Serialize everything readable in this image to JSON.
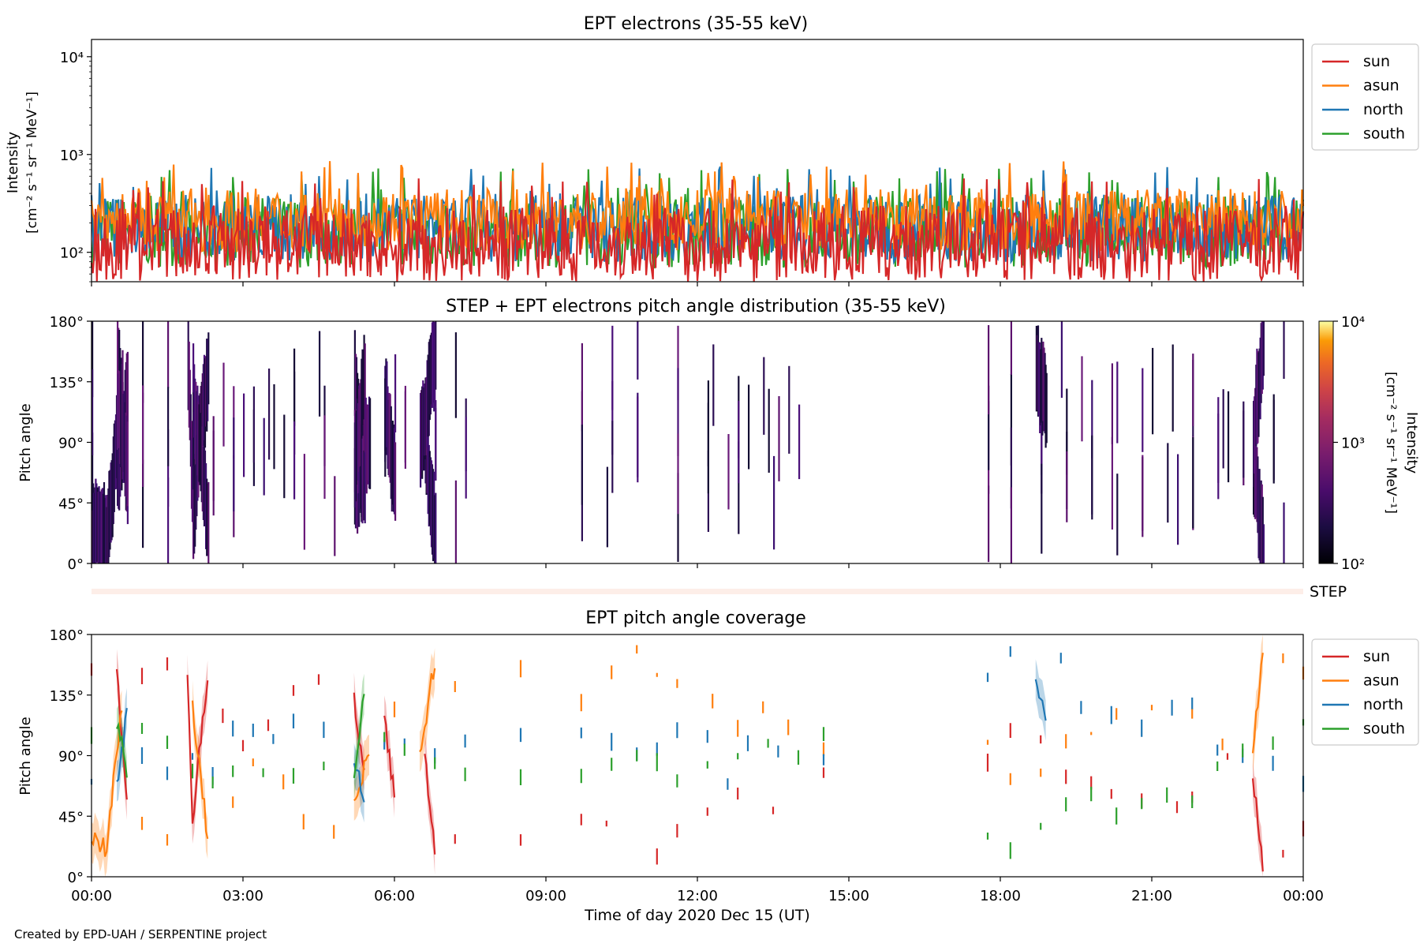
{
  "footer": "Created by EPD-UAH / SERPENTINE project",
  "legend_entries": [
    {
      "label": "sun",
      "color": "#d62728"
    },
    {
      "label": "asun",
      "color": "#ff7f0e"
    },
    {
      "label": "north",
      "color": "#1f77b4"
    },
    {
      "label": "south",
      "color": "#2ca02c"
    }
  ],
  "chart_data": [
    {
      "type": "line",
      "title": "EPT electrons (35-55 keV)",
      "ylabel_line1": "Intensity",
      "ylabel_line2": "[cm⁻² s⁻¹ sr⁻¹ MeV⁻¹]",
      "yscale": "log",
      "ylim": [
        50,
        15000
      ],
      "yticks": [
        {
          "value": 100,
          "label": "10²"
        },
        {
          "value": 1000,
          "label": "10³"
        },
        {
          "value": 10000,
          "label": "10⁴"
        }
      ],
      "xlim_hours": [
        0,
        24
      ],
      "legend": "outside-right-top",
      "series": [
        {
          "name": "sun",
          "color": "#d62728",
          "typical_range": [
            50,
            300
          ]
        },
        {
          "name": "asun",
          "color": "#ff7f0e",
          "typical_range": [
            100,
            450
          ]
        },
        {
          "name": "north",
          "color": "#1f77b4",
          "typical_range": [
            80,
            400
          ]
        },
        {
          "name": "south",
          "color": "#2ca02c",
          "typical_range": [
            70,
            380
          ]
        }
      ]
    },
    {
      "type": "heatmap",
      "title": "STEP + EPT electrons pitch angle distribution (35-55 keV)",
      "ylabel": "Pitch angle",
      "ylim": [
        0,
        180
      ],
      "yticks": [
        {
          "value": 0,
          "label": "0°"
        },
        {
          "value": 45,
          "label": "45°"
        },
        {
          "value": 90,
          "label": "90°"
        },
        {
          "value": 135,
          "label": "135°"
        },
        {
          "value": 180,
          "label": "180°"
        }
      ],
      "colorbar": {
        "label_line1": "Intensity",
        "label_line2": "[cm⁻² s⁻¹ sr⁻¹ MeV⁻¹]",
        "scale": "log",
        "range": [
          100,
          10000
        ],
        "ticks": [
          {
            "value": 100,
            "label": "10²"
          },
          {
            "value": 1000,
            "label": "10³"
          },
          {
            "value": 10000,
            "label": "10⁴"
          }
        ]
      },
      "data_intervals_hours": [
        [
          0,
          8.5
        ],
        [
          9.7,
          11.2
        ],
        [
          11.6,
          14.5
        ],
        [
          17.75,
          24
        ]
      ]
    },
    {
      "type": "bar",
      "label": "STEP",
      "description_value": "thin coverage strip"
    },
    {
      "type": "line",
      "title": "EPT pitch angle coverage",
      "ylabel": "Pitch angle",
      "ylim": [
        0,
        180
      ],
      "yticks": [
        {
          "value": 0,
          "label": "0°"
        },
        {
          "value": 45,
          "label": "45°"
        },
        {
          "value": 90,
          "label": "90°"
        },
        {
          "value": 135,
          "label": "135°"
        },
        {
          "value": 180,
          "label": "180°"
        }
      ],
      "xlabel": "Time of day 2020 Dec 15 (UT)",
      "xticks": [
        {
          "value": 0,
          "label": "00:00"
        },
        {
          "value": 3,
          "label": "03:00"
        },
        {
          "value": 6,
          "label": "06:00"
        },
        {
          "value": 9,
          "label": "09:00"
        },
        {
          "value": 12,
          "label": "12:00"
        },
        {
          "value": 15,
          "label": "15:00"
        },
        {
          "value": 18,
          "label": "18:00"
        },
        {
          "value": 21,
          "label": "21:00"
        },
        {
          "value": 24,
          "label": "00:00"
        }
      ],
      "legend": "outside-right-top",
      "band_halfwidth_deg": 15,
      "series": [
        {
          "name": "sun",
          "color": "#d62728",
          "points": [
            [
              0,
              155
            ],
            [
              0.5,
              150
            ],
            [
              0.7,
              60
            ],
            [
              1,
              150
            ],
            [
              1.5,
              160
            ],
            [
              1.9,
              155
            ],
            [
              2,
              40
            ],
            [
              2.3,
              150
            ],
            [
              2.6,
              120
            ],
            [
              3,
              95
            ],
            [
              3.5,
              110
            ],
            [
              4,
              140
            ],
            [
              4.5,
              145
            ],
            [
              5.2,
              130
            ],
            [
              5.4,
              80
            ],
            [
              5.8,
              120
            ],
            [
              6,
              60
            ],
            [
              6.6,
              90
            ],
            [
              6.8,
              15
            ],
            [
              7.2,
              30
            ],
            [
              8.5,
              25
            ],
            [
              9.7,
              45
            ],
            [
              10.2,
              35
            ],
            [
              11.2,
              15
            ],
            [
              11.6,
              35
            ],
            [
              12.2,
              45
            ],
            [
              12.8,
              60
            ],
            [
              13.5,
              50
            ],
            [
              14.5,
              75
            ],
            [
              17.75,
              85
            ],
            [
              18.2,
              110
            ],
            [
              18.8,
              100
            ],
            [
              19.3,
              75
            ],
            [
              19.8,
              70
            ],
            [
              20.2,
              60
            ],
            [
              20.8,
              55
            ],
            [
              21.5,
              50
            ],
            [
              21.8,
              60
            ],
            [
              22.5,
              85
            ],
            [
              23,
              75
            ],
            [
              23.2,
              10
            ],
            [
              23.6,
              20
            ],
            [
              24,
              35
            ]
          ]
        },
        {
          "name": "asun",
          "color": "#ff7f0e",
          "points": [
            [
              0,
              30
            ],
            [
              0.3,
              20
            ],
            [
              0.6,
              130
            ],
            [
              1,
              40
            ],
            [
              1.5,
              25
            ],
            [
              2,
              125
            ],
            [
              2.3,
              30
            ],
            [
              2.8,
              55
            ],
            [
              3.2,
              85
            ],
            [
              3.8,
              70
            ],
            [
              4.2,
              40
            ],
            [
              4.8,
              35
            ],
            [
              5.2,
              50
            ],
            [
              5.5,
              95
            ],
            [
              6,
              125
            ],
            [
              6.5,
              90
            ],
            [
              6.8,
              160
            ],
            [
              7.2,
              140
            ],
            [
              8.5,
              155
            ],
            [
              9.7,
              130
            ],
            [
              10.3,
              150
            ],
            [
              10.8,
              170
            ],
            [
              11.2,
              155
            ],
            [
              11.6,
              140
            ],
            [
              12.3,
              130
            ],
            [
              12.8,
              110
            ],
            [
              13.3,
              125
            ],
            [
              13.8,
              110
            ],
            [
              14.5,
              95
            ],
            [
              17.75,
              100
            ],
            [
              18.2,
              75
            ],
            [
              18.8,
              80
            ],
            [
              19.3,
              100
            ],
            [
              19.8,
              110
            ],
            [
              20.3,
              120
            ],
            [
              21,
              125
            ],
            [
              21.8,
              120
            ],
            [
              22.4,
              100
            ],
            [
              23,
              90
            ],
            [
              23.2,
              170
            ],
            [
              23.6,
              160
            ],
            [
              24,
              150
            ]
          ]
        },
        {
          "name": "north",
          "color": "#1f77b4",
          "points": [
            [
              0,
              75
            ],
            [
              0.5,
              70
            ],
            [
              0.7,
              120
            ],
            [
              1,
              90
            ],
            [
              1.5,
              75
            ],
            [
              2,
              90
            ],
            [
              2.4,
              75
            ],
            [
              2.8,
              110
            ],
            [
              3.2,
              110
            ],
            [
              3.6,
              100
            ],
            [
              4,
              115
            ],
            [
              4.6,
              110
            ],
            [
              5.2,
              90
            ],
            [
              5.4,
              60
            ],
            [
              5.8,
              95
            ],
            [
              6.2,
              100
            ],
            [
              6.8,
              90
            ],
            [
              7.4,
              100
            ],
            [
              8.5,
              105
            ],
            [
              9.7,
              105
            ],
            [
              10.3,
              100
            ],
            [
              10.8,
              90
            ],
            [
              11.2,
              95
            ],
            [
              11.6,
              110
            ],
            [
              12.2,
              105
            ],
            [
              12.6,
              70
            ],
            [
              13,
              100
            ],
            [
              13.6,
              95
            ],
            [
              14.5,
              85
            ],
            [
              17.75,
              150
            ],
            [
              18.2,
              165
            ],
            [
              18.7,
              145
            ],
            [
              18.9,
              120
            ],
            [
              19.2,
              160
            ],
            [
              19.6,
              125
            ],
            [
              20.2,
              120
            ],
            [
              20.8,
              110
            ],
            [
              21.4,
              125
            ],
            [
              21.8,
              130
            ],
            [
              22.3,
              95
            ],
            [
              22.8,
              90
            ],
            [
              23.4,
              85
            ],
            [
              24,
              70
            ]
          ]
        },
        {
          "name": "south",
          "color": "#2ca02c",
          "points": [
            [
              0,
              105
            ],
            [
              0.5,
              115
            ],
            [
              0.7,
              80
            ],
            [
              1,
              110
            ],
            [
              1.5,
              100
            ],
            [
              2,
              80
            ],
            [
              2.4,
              70
            ],
            [
              2.8,
              80
            ],
            [
              3.4,
              80
            ],
            [
              4,
              75
            ],
            [
              4.6,
              85
            ],
            [
              5.2,
              75
            ],
            [
              5.4,
              140
            ],
            [
              5.8,
              105
            ],
            [
              6.2,
              95
            ],
            [
              6.8,
              85
            ],
            [
              7.4,
              75
            ],
            [
              8.5,
              75
            ],
            [
              9.7,
              75
            ],
            [
              10.3,
              85
            ],
            [
              10.8,
              90
            ],
            [
              11.2,
              85
            ],
            [
              11.6,
              70
            ],
            [
              12.2,
              80
            ],
            [
              12.8,
              90
            ],
            [
              13.4,
              100
            ],
            [
              14,
              90
            ],
            [
              14.5,
              105
            ],
            [
              17.75,
              30
            ],
            [
              18.2,
              20
            ],
            [
              18.8,
              35
            ],
            [
              19.3,
              55
            ],
            [
              19.8,
              60
            ],
            [
              20.3,
              45
            ],
            [
              20.8,
              55
            ],
            [
              21.3,
              60
            ],
            [
              21.8,
              55
            ],
            [
              22.3,
              85
            ],
            [
              22.8,
              95
            ],
            [
              23.4,
              100
            ],
            [
              24,
              115
            ]
          ]
        }
      ]
    }
  ]
}
